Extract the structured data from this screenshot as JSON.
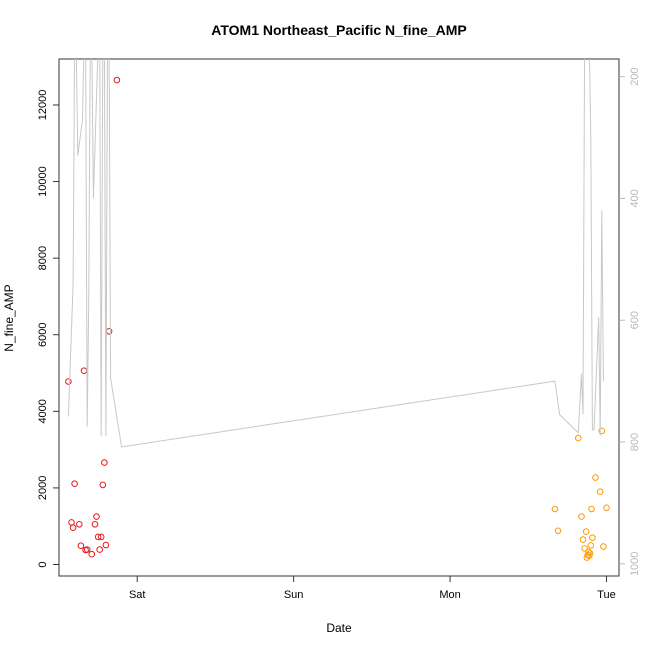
{
  "chart_data": {
    "type": "scatter",
    "title": "ATOM1 Northeast_Pacific N_fine_AMP",
    "xlabel": "Date",
    "ylabel": "N_fine_AMP",
    "x_unit": "days",
    "x_ticks": [
      {
        "label": "Sat",
        "value": 1.0
      },
      {
        "label": "Sun",
        "value": 2.0
      },
      {
        "label": "Mon",
        "value": 3.0
      },
      {
        "label": "Tue",
        "value": 4.0
      }
    ],
    "xlim": [
      0.5,
      4.08
    ],
    "ylim": [
      -300,
      13200
    ],
    "y_ticks": [
      0,
      2000,
      4000,
      6000,
      8000,
      10000,
      12000
    ],
    "y2_ticks": [
      200,
      400,
      600,
      800,
      1000
    ],
    "y2lim": [
      1020,
      171
    ],
    "y2_reversed": true,
    "grid": false,
    "series": [
      {
        "color": "#e41a1c",
        "points": [
          [
            0.56,
            4780
          ],
          [
            0.58,
            1100
          ],
          [
            0.59,
            960
          ],
          [
            0.6,
            2110
          ],
          [
            0.63,
            1050
          ],
          [
            0.64,
            490
          ],
          [
            0.66,
            5060
          ],
          [
            0.67,
            380
          ],
          [
            0.68,
            390
          ],
          [
            0.71,
            270
          ],
          [
            0.73,
            1050
          ],
          [
            0.74,
            1250
          ],
          [
            0.75,
            720
          ],
          [
            0.76,
            390
          ],
          [
            0.77,
            720
          ],
          [
            0.78,
            2080
          ],
          [
            0.79,
            2660
          ],
          [
            0.8,
            510
          ],
          [
            0.82,
            6090
          ],
          [
            0.87,
            12650
          ]
        ]
      },
      {
        "color": "#ff9900",
        "points": [
          [
            3.67,
            1450
          ],
          [
            3.69,
            880
          ],
          [
            3.82,
            3300
          ],
          [
            3.84,
            1250
          ],
          [
            3.85,
            650
          ],
          [
            3.86,
            420
          ],
          [
            3.87,
            860
          ],
          [
            3.875,
            180
          ],
          [
            3.88,
            250
          ],
          [
            3.885,
            330
          ],
          [
            3.89,
            230
          ],
          [
            3.895,
            290
          ],
          [
            3.9,
            500
          ],
          [
            3.905,
            1450
          ],
          [
            3.91,
            700
          ],
          [
            3.93,
            2270
          ],
          [
            3.96,
            1900
          ],
          [
            3.97,
            3490
          ],
          [
            3.98,
            470
          ],
          [
            4.0,
            1480
          ]
        ]
      },
      {
        "color": "#c8c8c8",
        "kind": "line",
        "axis": "y2",
        "points": [
          [
            0.56,
            758
          ],
          [
            0.59,
            540
          ],
          [
            0.6,
            148
          ],
          [
            0.61,
            148
          ],
          [
            0.62,
            330
          ],
          [
            0.65,
            270
          ],
          [
            0.66,
            148
          ],
          [
            0.67,
            148
          ],
          [
            0.68,
            775
          ],
          [
            0.69,
            575
          ],
          [
            0.7,
            148
          ],
          [
            0.71,
            148
          ],
          [
            0.72,
            400
          ],
          [
            0.75,
            148
          ],
          [
            0.76,
            148
          ],
          [
            0.77,
            790
          ],
          [
            0.78,
            148
          ],
          [
            0.79,
            148
          ],
          [
            0.8,
            790
          ],
          [
            0.81,
            148
          ],
          [
            0.82,
            148
          ],
          [
            0.83,
            695
          ],
          [
            0.9,
            808
          ],
          [
            3.67,
            700
          ],
          [
            3.7,
            755
          ],
          [
            3.82,
            785
          ],
          [
            3.84,
            688
          ],
          [
            3.85,
            755
          ],
          [
            3.86,
            148
          ],
          [
            3.87,
            148
          ],
          [
            3.88,
            148
          ],
          [
            3.89,
            148
          ],
          [
            3.9,
            300
          ],
          [
            3.91,
            780
          ],
          [
            3.92,
            780
          ],
          [
            3.95,
            595
          ],
          [
            3.96,
            790
          ],
          [
            3.97,
            420
          ],
          [
            3.98,
            700
          ]
        ]
      }
    ]
  }
}
